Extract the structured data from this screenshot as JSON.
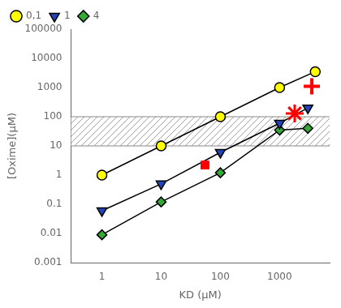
{
  "chart_data": {
    "type": "line",
    "xlabel": "KD (μM)",
    "ylabel": "[Oxime](μM)",
    "log": true,
    "grid": false,
    "legend": "upper left",
    "xlim": [
      0.3,
      7000
    ],
    "ylim": [
      0.001,
      100000
    ],
    "xticks": [
      1,
      10,
      100,
      1000
    ],
    "yticks": [
      0.001,
      0.01,
      0.1,
      1,
      10,
      100,
      1000,
      10000,
      100000
    ],
    "band": {
      "ymin": 10,
      "ymax": 100
    },
    "series": [
      {
        "name": "0,1",
        "color": "#ffff00",
        "marker": "circle",
        "line_style": "solid",
        "x": [
          1,
          10,
          100,
          1000,
          4000
        ],
        "values": [
          1,
          10,
          100,
          1000,
          3500
        ]
      },
      {
        "name": "1",
        "color": "#2244bb",
        "marker": "triangle_down",
        "line_style": "solid",
        "x": [
          1,
          10,
          100,
          1000,
          3000
        ],
        "values": [
          0.06,
          0.5,
          6,
          60,
          200
        ]
      },
      {
        "name": "4",
        "color": "#33aa33",
        "marker": "diamond",
        "line_style": "solid",
        "x": [
          1,
          10,
          100,
          1000,
          3000
        ],
        "values": [
          0.009,
          0.12,
          1.2,
          35,
          40
        ]
      },
      {
        "color": "#ff0000",
        "marker": "plus",
        "line_style": "none",
        "x": [
          3500
        ],
        "values": [
          1100
        ]
      },
      {
        "color": "#ff0000",
        "marker": "star",
        "line_style": "none",
        "x": [
          1800
        ],
        "values": [
          130
        ]
      },
      {
        "color": "#ff0000",
        "marker": "square",
        "line_style": "none",
        "x": [
          55
        ],
        "values": [
          2.2
        ]
      }
    ]
  }
}
